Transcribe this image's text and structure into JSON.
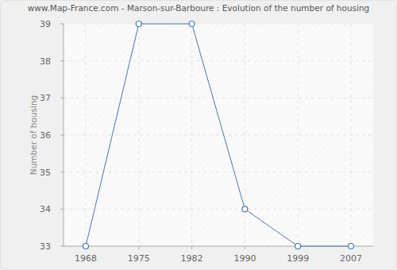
{
  "chart_data": {
    "type": "line",
    "title": "www.Map-France.com - Marson-sur-Barboure : Evolution of the number of housing",
    "categories": [
      "1968",
      "1975",
      "1982",
      "1990",
      "1999",
      "2007"
    ],
    "values": [
      33,
      39,
      39,
      34,
      33,
      33
    ],
    "ylabel": "Number of housing",
    "color": "#4a78a8",
    "marker": "circle",
    "ylim": [
      33,
      39
    ],
    "yticks": [
      33,
      34,
      35,
      36,
      37,
      38,
      39
    ],
    "grid": true
  }
}
